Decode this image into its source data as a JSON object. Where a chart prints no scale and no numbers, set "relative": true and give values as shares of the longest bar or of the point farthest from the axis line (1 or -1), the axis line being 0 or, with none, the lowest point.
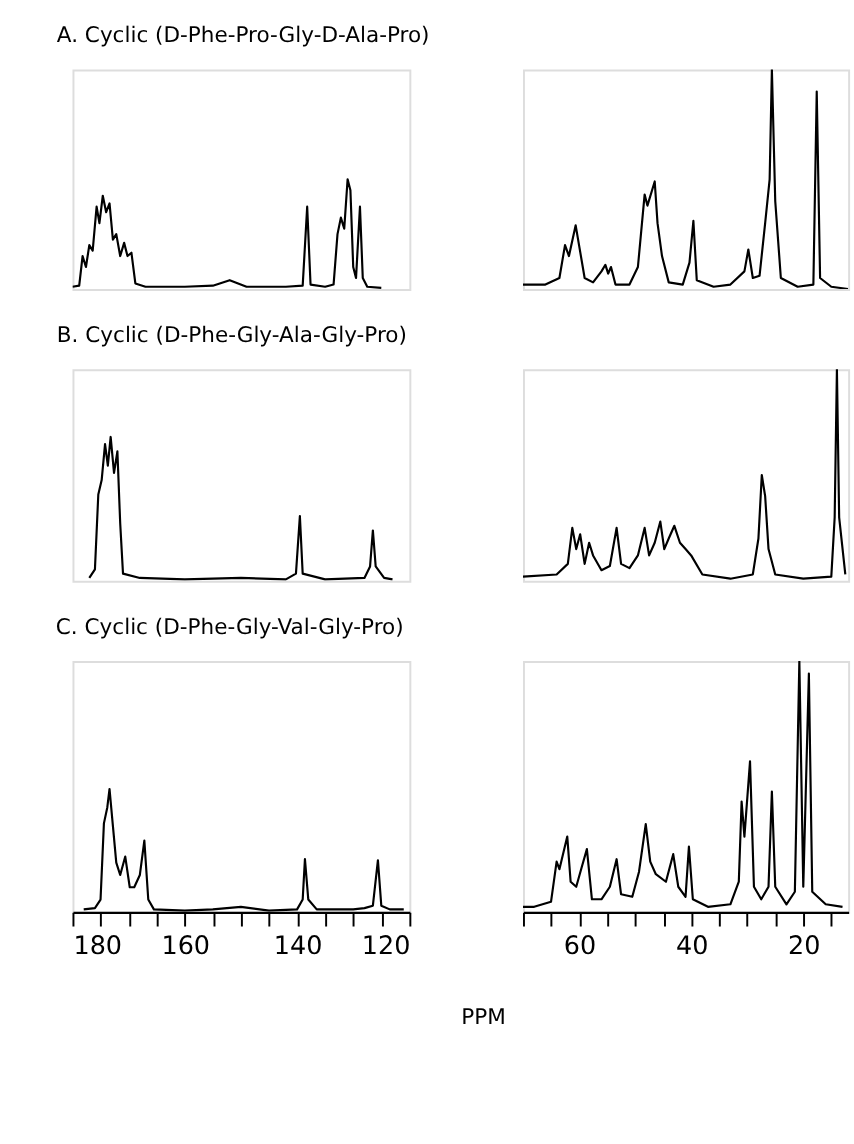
{
  "chart_data": [
    {
      "type": "line",
      "relative": true,
      "title": "A. Cyclic (D-Phe-Pro-Gly-D-Ala-Pro)",
      "color": "#000000",
      "tick_labels": false,
      "xlim": [
        180,
        120
      ],
      "x": [
        180,
        178.8,
        178.2,
        177.6,
        177,
        176.4,
        175.7,
        175.2,
        174.6,
        174,
        173.4,
        172.8,
        172.2,
        171.5,
        170.8,
        170.2,
        169.5,
        168.8,
        167,
        160,
        155,
        152,
        149,
        142,
        139,
        138.2,
        137.6,
        135,
        133.5,
        132.8,
        132.2,
        131.6,
        131,
        130.5,
        130,
        129.5,
        128.8,
        128.3,
        127.5,
        125
      ],
      "values": [
        0.02,
        0.03,
        0.3,
        0.2,
        0.4,
        0.35,
        0.75,
        0.6,
        0.85,
        0.7,
        0.78,
        0.45,
        0.5,
        0.3,
        0.42,
        0.3,
        0.33,
        0.05,
        0.02,
        0.02,
        0.03,
        0.08,
        0.02,
        0.02,
        0.03,
        0.75,
        0.04,
        0.02,
        0.04,
        0.5,
        0.65,
        0.55,
        1.0,
        0.9,
        0.2,
        0.1,
        0.75,
        0.1,
        0.02,
        0.01
      ]
    },
    {
      "type": "line",
      "relative": true,
      "color": "#000000",
      "tick_labels": false,
      "xlim": [
        70,
        12
      ],
      "x": [
        70,
        66,
        63.5,
        62.5,
        61.8,
        60.6,
        60,
        59,
        57.5,
        56,
        55.3,
        54.8,
        54.3,
        53.5,
        51,
        49.5,
        48.3,
        47.8,
        46.5,
        46,
        45.2,
        44,
        41.5,
        40.3,
        39.6,
        39,
        36,
        33,
        30.5,
        29.8,
        29,
        27.8,
        26.8,
        26,
        25.6,
        25,
        24,
        21,
        18.2,
        17.6,
        17,
        15,
        12
      ],
      "values": [
        0.02,
        0.02,
        0.05,
        0.2,
        0.15,
        0.29,
        0.2,
        0.05,
        0.03,
        0.08,
        0.11,
        0.07,
        0.1,
        0.02,
        0.02,
        0.1,
        0.43,
        0.38,
        0.49,
        0.3,
        0.15,
        0.03,
        0.02,
        0.12,
        0.31,
        0.04,
        0.01,
        0.02,
        0.08,
        0.18,
        0.05,
        0.06,
        0.3,
        0.5,
        1.0,
        0.4,
        0.05,
        0.01,
        0.02,
        0.9,
        0.05,
        0.01,
        0.0
      ]
    },
    {
      "type": "line",
      "relative": true,
      "title": "B. Cyclic (D-Phe-Gly-Ala-Gly-Pro)",
      "color": "#000000",
      "tick_labels": false,
      "xlim": [
        180,
        120
      ],
      "x": [
        177,
        176,
        175.4,
        174.8,
        174.2,
        173.7,
        173.2,
        172.6,
        172,
        171.5,
        171,
        168,
        160,
        150,
        142,
        140.2,
        139.5,
        139,
        135,
        128,
        127,
        126.5,
        126,
        124.5,
        123
      ],
      "values": [
        0.02,
        0.08,
        0.6,
        0.7,
        0.95,
        0.8,
        1.0,
        0.75,
        0.9,
        0.4,
        0.05,
        0.02,
        0.01,
        0.02,
        0.01,
        0.05,
        0.45,
        0.05,
        0.01,
        0.02,
        0.1,
        0.35,
        0.1,
        0.02,
        0.01
      ]
    },
    {
      "type": "line",
      "relative": true,
      "color": "#000000",
      "tick_labels": false,
      "xlim": [
        70,
        12
      ],
      "x": [
        70,
        64,
        62,
        61.2,
        60.5,
        59.8,
        59,
        58.2,
        57.5,
        56,
        54.5,
        53.3,
        52.5,
        51,
        49.5,
        48.3,
        47.5,
        46.5,
        45.5,
        44.8,
        44,
        43,
        42,
        41,
        40,
        38,
        33,
        29,
        28,
        27.4,
        26.8,
        26.2,
        25,
        20,
        15,
        14.4,
        14,
        13.6,
        12.5
      ],
      "values": [
        0.02,
        0.03,
        0.08,
        0.25,
        0.15,
        0.22,
        0.08,
        0.18,
        0.12,
        0.05,
        0.07,
        0.25,
        0.08,
        0.06,
        0.12,
        0.25,
        0.12,
        0.18,
        0.28,
        0.15,
        0.2,
        0.26,
        0.18,
        0.15,
        0.12,
        0.03,
        0.01,
        0.03,
        0.2,
        0.5,
        0.4,
        0.15,
        0.03,
        0.01,
        0.02,
        0.3,
        1.0,
        0.3,
        0.03
      ]
    },
    {
      "type": "line",
      "relative": true,
      "title": "C. Cyclic (D-Phe-Gly-Val-Gly-Pro)",
      "color": "#000000",
      "tick_labels": "x",
      "xlim": [
        180,
        120
      ],
      "xticks": [
        180,
        {
          "value": 175,
          "label": null
        },
        {
          "value": 170,
          "label": null
        },
        {
          "value": 165,
          "label": null
        },
        160,
        {
          "value": 155,
          "label": null
        },
        {
          "value": 150,
          "label": null
        },
        {
          "value": 145,
          "label": null
        },
        140,
        {
          "value": 135,
          "label": null
        },
        {
          "value": 130,
          "label": null
        },
        {
          "value": 125,
          "label": null
        },
        120
      ],
      "x": [
        178,
        176,
        175,
        174.4,
        173.8,
        173.4,
        172.8,
        172.2,
        171.5,
        170.6,
        169.8,
        169,
        168,
        167.2,
        166.5,
        165.5,
        160,
        155,
        150,
        145,
        140,
        139,
        138.6,
        138,
        136.5,
        130,
        128,
        126.5,
        125.6,
        125,
        123.5,
        121
      ],
      "values": [
        0.02,
        0.03,
        0.1,
        0.72,
        0.85,
        1.0,
        0.7,
        0.4,
        0.3,
        0.45,
        0.2,
        0.2,
        0.3,
        0.58,
        0.1,
        0.02,
        0.01,
        0.02,
        0.04,
        0.01,
        0.02,
        0.1,
        0.43,
        0.1,
        0.02,
        0.02,
        0.03,
        0.05,
        0.42,
        0.05,
        0.02,
        0.02
      ]
    },
    {
      "type": "line",
      "relative": true,
      "color": "#000000",
      "tick_labels": "x",
      "xlabel": "PPM",
      "xlim": [
        70,
        12
      ],
      "xticks": [
        {
          "value": 70,
          "label": null
        },
        {
          "value": 65,
          "label": null
        },
        60,
        {
          "value": 55,
          "label": null
        },
        {
          "value": 50,
          "label": null
        },
        {
          "value": 45,
          "label": null
        },
        40,
        {
          "value": 35,
          "label": null
        },
        {
          "value": 30,
          "label": null
        },
        {
          "value": 25,
          "label": null
        },
        20,
        {
          "value": 15,
          "label": null
        }
      ],
      "x": [
        70,
        68,
        65,
        64,
        63.5,
        62.1,
        61.5,
        60.5,
        59.5,
        58.6,
        57.7,
        56,
        54.5,
        53.3,
        52.5,
        50.5,
        49.3,
        48.1,
        47.3,
        46.3,
        44.5,
        43.2,
        42.3,
        41,
        40.4,
        39.7,
        37,
        33,
        31.5,
        31,
        30.5,
        29.5,
        28.8,
        27.5,
        26.2,
        25.6,
        25,
        23,
        21.5,
        20.7,
        20,
        19,
        18.4,
        16,
        13
      ],
      "values": [
        0.02,
        0.02,
        0.04,
        0.2,
        0.17,
        0.3,
        0.12,
        0.1,
        0.18,
        0.25,
        0.05,
        0.05,
        0.1,
        0.21,
        0.07,
        0.06,
        0.16,
        0.35,
        0.2,
        0.15,
        0.12,
        0.23,
        0.1,
        0.06,
        0.26,
        0.05,
        0.02,
        0.03,
        0.12,
        0.44,
        0.3,
        0.6,
        0.1,
        0.05,
        0.1,
        0.48,
        0.1,
        0.03,
        0.08,
        1.0,
        0.1,
        0.95,
        0.08,
        0.03,
        0.02
      ]
    }
  ]
}
